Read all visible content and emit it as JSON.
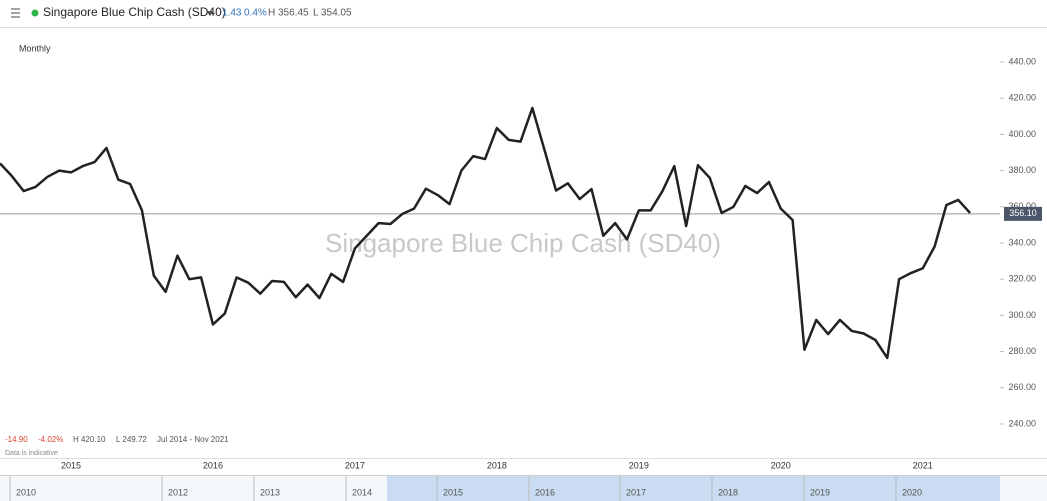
{
  "header": {
    "title": "Singapore Blue Chip Cash (SD40)",
    "change": "1.43",
    "change_pct": "0.4%",
    "high": "H 356.45",
    "low": "L 354.05"
  },
  "chart_data": {
    "type": "line",
    "period": "Monthly",
    "watermark": "Singapore Blue Chip Cash (SD40)",
    "categories": [
      null,
      null,
      null,
      null,
      null,
      null,
      "2015",
      null,
      null,
      null,
      null,
      null,
      null,
      null,
      null,
      null,
      null,
      null,
      "2016",
      null,
      null,
      null,
      null,
      null,
      null,
      null,
      null,
      null,
      null,
      null,
      "2017",
      null,
      null,
      null,
      null,
      null,
      null,
      null,
      null,
      null,
      null,
      null,
      "2018",
      null,
      null,
      null,
      null,
      null,
      null,
      null,
      null,
      null,
      null,
      null,
      "2019",
      null,
      null,
      null,
      null,
      null,
      null,
      null,
      null,
      null,
      null,
      null,
      "2020",
      null,
      null,
      null,
      null,
      null,
      null,
      null,
      null,
      null,
      null,
      null,
      "2021",
      null,
      null,
      null,
      null
    ],
    "series": [
      {
        "name": "Singapore Blue Chip Cash (SD40)",
        "color": "#222222",
        "values": [
          384,
          377,
          368.7,
          371,
          376.5,
          380,
          379,
          382.5,
          384.7,
          392.5,
          375,
          372.6,
          358,
          322,
          313,
          333,
          320,
          321,
          295,
          301,
          321,
          318,
          312,
          319,
          318.5,
          310,
          317,
          309.6,
          323,
          318.5,
          337,
          344,
          351,
          350.5,
          356,
          359,
          370,
          366.5,
          361.5,
          380,
          388,
          386.4,
          403.5,
          397,
          396,
          414.6,
          392,
          369,
          373,
          364.3,
          369.8,
          344,
          351,
          342,
          358,
          358,
          368.7,
          382.5,
          349.4,
          383,
          376,
          356.6,
          360,
          371.5,
          367.6,
          373.7,
          359,
          352.7,
          281,
          297.5,
          289.7,
          297.5,
          291.4,
          290,
          286.4,
          276.5,
          320,
          323.4,
          326,
          338,
          361,
          363.8,
          356.6
        ]
      }
    ],
    "price_line": {
      "value": 356.1,
      "label": "356.10"
    },
    "ylim": [
      221.2,
      458.8
    ],
    "yticks": [
      {
        "value": 240,
        "label": "240.00"
      },
      {
        "value": 260,
        "label": "260.00"
      },
      {
        "value": 280,
        "label": "280.00"
      },
      {
        "value": 300,
        "label": "300.00"
      },
      {
        "value": 320,
        "label": "320.00"
      },
      {
        "value": 340,
        "label": "340.00"
      },
      {
        "value": 360,
        "label": "360.00"
      },
      {
        "value": 380,
        "label": "380.00"
      },
      {
        "value": 400,
        "label": "400.00"
      },
      {
        "value": 420,
        "label": "420.00"
      },
      {
        "value": 440,
        "label": "440.00"
      }
    ],
    "grid": false
  },
  "stats": {
    "change": "-14.90",
    "change_pct": "-4.02%",
    "high": "H 420.10",
    "low": "L 249.72",
    "range": "Jul 2014 - Nov 2021",
    "note": "Data is indicative"
  },
  "navigator": {
    "labels": [
      "2010",
      "2012",
      "2013",
      "2014",
      "2015",
      "2016",
      "2017",
      "2018",
      "2019",
      "2020"
    ]
  }
}
